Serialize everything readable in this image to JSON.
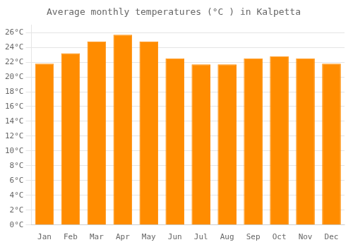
{
  "chart_data": {
    "type": "bar",
    "title": "Average monthly temperatures (°C ) in Kalpetta",
    "categories": [
      "Jan",
      "Feb",
      "Mar",
      "Apr",
      "May",
      "Jun",
      "Jul",
      "Aug",
      "Sep",
      "Oct",
      "Nov",
      "Dec"
    ],
    "values": [
      21.8,
      23.2,
      24.8,
      25.7,
      24.8,
      22.5,
      21.7,
      21.7,
      22.5,
      22.8,
      22.5,
      21.8
    ],
    "color": "#FF8C00",
    "ylim": [
      0,
      27
    ],
    "yticks": [
      {
        "value": 0,
        "label": "0°C"
      },
      {
        "value": 2,
        "label": "2°C"
      },
      {
        "value": 4,
        "label": "4°C"
      },
      {
        "value": 6,
        "label": "6°C"
      },
      {
        "value": 8,
        "label": "8°C"
      },
      {
        "value": 10,
        "label": "10°C"
      },
      {
        "value": 12,
        "label": "12°C"
      },
      {
        "value": 14,
        "label": "14°C"
      },
      {
        "value": 16,
        "label": "16°C"
      },
      {
        "value": 18,
        "label": "18°C"
      },
      {
        "value": 20,
        "label": "20°C"
      },
      {
        "value": 22,
        "label": "22°C"
      },
      {
        "value": 24,
        "label": "24°C"
      },
      {
        "value": 26,
        "label": "26°C"
      }
    ],
    "grid": true
  }
}
